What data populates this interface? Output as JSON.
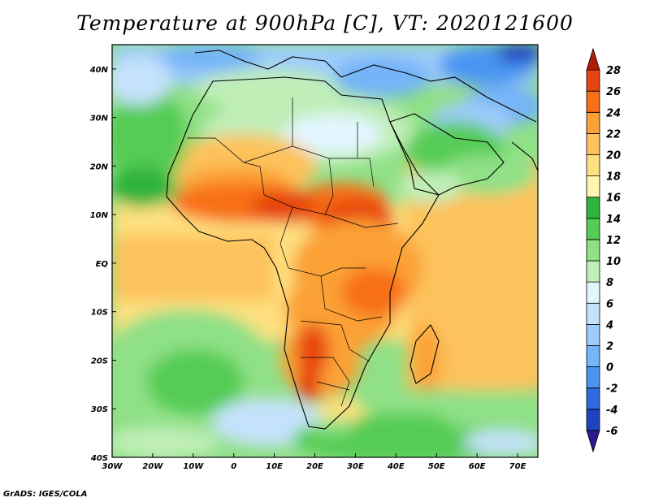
{
  "title": "Temperature at 900hPa [C], VT: 2020121600",
  "credit": "GrADS: IGES/COLA",
  "map": {
    "lon_range": [
      -30,
      75
    ],
    "lat_range": [
      -40,
      45
    ],
    "x_ticks": [
      {
        "lon": -30,
        "label": "30W"
      },
      {
        "lon": -20,
        "label": "20W"
      },
      {
        "lon": -10,
        "label": "10W"
      },
      {
        "lon": 0,
        "label": "0"
      },
      {
        "lon": 10,
        "label": "10E"
      },
      {
        "lon": 20,
        "label": "20E"
      },
      {
        "lon": 30,
        "label": "30E"
      },
      {
        "lon": 40,
        "label": "40E"
      },
      {
        "lon": 50,
        "label": "50E"
      },
      {
        "lon": 60,
        "label": "60E"
      },
      {
        "lon": 70,
        "label": "70E"
      }
    ],
    "y_ticks": [
      {
        "lat": 40,
        "label": "40N"
      },
      {
        "lat": 30,
        "label": "30N"
      },
      {
        "lat": 20,
        "label": "20N"
      },
      {
        "lat": 10,
        "label": "10N"
      },
      {
        "lat": 0,
        "label": "EQ"
      },
      {
        "lat": -10,
        "label": "10S"
      },
      {
        "lat": -20,
        "label": "20S"
      },
      {
        "lat": -30,
        "label": "30S"
      },
      {
        "lat": -40,
        "label": "40S"
      }
    ]
  },
  "colorbar": {
    "levels": [
      "-6",
      "-4",
      "-2",
      "0",
      "2",
      "4",
      "6",
      "8",
      "10",
      "12",
      "14",
      "16",
      "18",
      "20",
      "22",
      "24",
      "26",
      "28"
    ],
    "colors": [
      "#2a1c8c",
      "#1f44c0",
      "#2f6ae0",
      "#4a95f2",
      "#74b4f8",
      "#9dccfa",
      "#c4e2fc",
      "#e2f6ff",
      "#bfeeb7",
      "#8fe086",
      "#55cc55",
      "#2fb43d",
      "#fff4b0",
      "#fee07f",
      "#fdc25c",
      "#fba135",
      "#f87018",
      "#e84410",
      "#b11c07"
    ]
  }
}
